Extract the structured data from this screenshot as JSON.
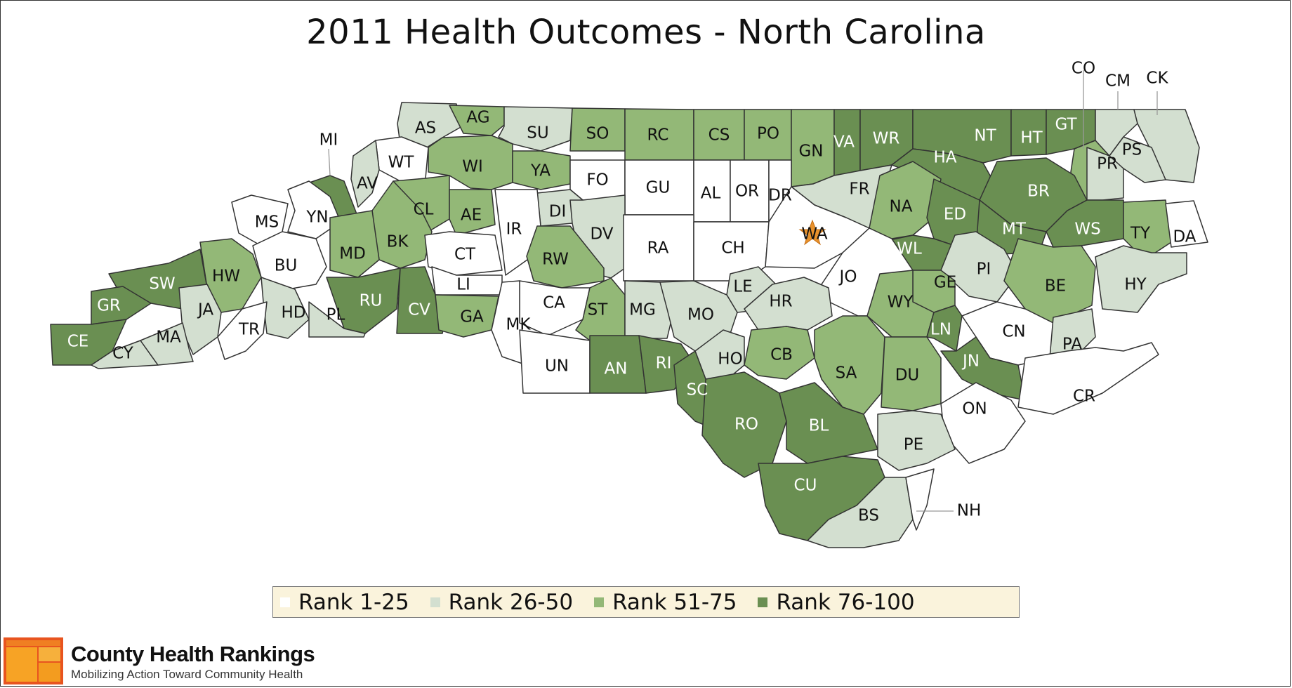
{
  "title": "2011 Health Outcomes - North Carolina",
  "legend": [
    {
      "label": "Rank 1-25",
      "color": "#ffffff"
    },
    {
      "label": "Rank 26-50",
      "color": "#d3dfd0"
    },
    {
      "label": "Rank 51-75",
      "color": "#93b877"
    },
    {
      "label": "Rank 76-100",
      "color": "#6a8f52"
    }
  ],
  "colors": {
    "tier1": "#ffffff",
    "tier2": "#d3dfd0",
    "tier3": "#93b877",
    "tier4": "#6a8f52",
    "border": "#333333",
    "star": "#e8922c"
  },
  "brand": {
    "name": "County Health Rankings",
    "tagline": "Mobilizing Action Toward Community Health"
  },
  "counties": [
    {
      "abbr": "AS",
      "tier": 2
    },
    {
      "abbr": "AG",
      "tier": 3
    },
    {
      "abbr": "SU",
      "tier": 2
    },
    {
      "abbr": "SO",
      "tier": 3
    },
    {
      "abbr": "RC",
      "tier": 3
    },
    {
      "abbr": "CS",
      "tier": 3
    },
    {
      "abbr": "PO",
      "tier": 3
    },
    {
      "abbr": "GN",
      "tier": 3
    },
    {
      "abbr": "VA",
      "tier": 4
    },
    {
      "abbr": "WR",
      "tier": 4
    },
    {
      "abbr": "NT",
      "tier": 4
    },
    {
      "abbr": "HA",
      "tier": 4
    },
    {
      "abbr": "HT",
      "tier": 4
    },
    {
      "abbr": "GT",
      "tier": 4
    },
    {
      "abbr": "CO",
      "tier": 3
    },
    {
      "abbr": "CM",
      "tier": 2
    },
    {
      "abbr": "CK",
      "tier": 2
    },
    {
      "abbr": "PR",
      "tier": 2
    },
    {
      "abbr": "PS",
      "tier": 2
    },
    {
      "abbr": "WT",
      "tier": 1
    },
    {
      "abbr": "WI",
      "tier": 3
    },
    {
      "abbr": "YA",
      "tier": 3
    },
    {
      "abbr": "FO",
      "tier": 1
    },
    {
      "abbr": "GU",
      "tier": 1
    },
    {
      "abbr": "AL",
      "tier": 1
    },
    {
      "abbr": "OR",
      "tier": 1
    },
    {
      "abbr": "DR",
      "tier": 1
    },
    {
      "abbr": "FR",
      "tier": 2
    },
    {
      "abbr": "MI",
      "tier": 4
    },
    {
      "abbr": "AV",
      "tier": 2
    },
    {
      "abbr": "CL",
      "tier": 3
    },
    {
      "abbr": "AE",
      "tier": 3
    },
    {
      "abbr": "DI",
      "tier": 2
    },
    {
      "abbr": "DV",
      "tier": 2
    },
    {
      "abbr": "IR",
      "tier": 1
    },
    {
      "abbr": "RA",
      "tier": 1
    },
    {
      "abbr": "CH",
      "tier": 1
    },
    {
      "abbr": "WA",
      "tier": 1
    },
    {
      "abbr": "NA",
      "tier": 3
    },
    {
      "abbr": "ED",
      "tier": 4
    },
    {
      "abbr": "BR",
      "tier": 4
    },
    {
      "abbr": "MT",
      "tier": 4
    },
    {
      "abbr": "WS",
      "tier": 4
    },
    {
      "abbr": "TY",
      "tier": 3
    },
    {
      "abbr": "DA",
      "tier": 1
    },
    {
      "abbr": "MS",
      "tier": 1
    },
    {
      "abbr": "YN",
      "tier": 1
    },
    {
      "abbr": "BK",
      "tier": 3
    },
    {
      "abbr": "MD",
      "tier": 3
    },
    {
      "abbr": "CT",
      "tier": 1
    },
    {
      "abbr": "RW",
      "tier": 3
    },
    {
      "abbr": "WL",
      "tier": 4
    },
    {
      "abbr": "JO",
      "tier": 1
    },
    {
      "abbr": "PI",
      "tier": 2
    },
    {
      "abbr": "BE",
      "tier": 3
    },
    {
      "abbr": "HY",
      "tier": 2
    },
    {
      "abbr": "BU",
      "tier": 1
    },
    {
      "abbr": "HW",
      "tier": 3
    },
    {
      "abbr": "SW",
      "tier": 4
    },
    {
      "abbr": "LI",
      "tier": 1
    },
    {
      "abbr": "RU",
      "tier": 4
    },
    {
      "abbr": "CV",
      "tier": 4
    },
    {
      "abbr": "LE",
      "tier": 2
    },
    {
      "abbr": "HR",
      "tier": 2
    },
    {
      "abbr": "GE",
      "tier": 3
    },
    {
      "abbr": "WY",
      "tier": 3
    },
    {
      "abbr": "CA",
      "tier": 1
    },
    {
      "abbr": "ST",
      "tier": 3
    },
    {
      "abbr": "MG",
      "tier": 2
    },
    {
      "abbr": "MO",
      "tier": 2
    },
    {
      "abbr": "GR",
      "tier": 4
    },
    {
      "abbr": "JA",
      "tier": 2
    },
    {
      "abbr": "HD",
      "tier": 2
    },
    {
      "abbr": "PL",
      "tier": 2
    },
    {
      "abbr": "GA",
      "tier": 3
    },
    {
      "abbr": "MK",
      "tier": 1
    },
    {
      "abbr": "LN",
      "tier": 4
    },
    {
      "abbr": "CN",
      "tier": 1
    },
    {
      "abbr": "PA",
      "tier": 2
    },
    {
      "abbr": "CE",
      "tier": 4
    },
    {
      "abbr": "CY",
      "tier": 2
    },
    {
      "abbr": "MA",
      "tier": 2
    },
    {
      "abbr": "TR",
      "tier": 1
    },
    {
      "abbr": "UN",
      "tier": 1
    },
    {
      "abbr": "AN",
      "tier": 4
    },
    {
      "abbr": "RI",
      "tier": 4
    },
    {
      "abbr": "HO",
      "tier": 2
    },
    {
      "abbr": "CB",
      "tier": 3
    },
    {
      "abbr": "SA",
      "tier": 3
    },
    {
      "abbr": "DU",
      "tier": 3
    },
    {
      "abbr": "JN",
      "tier": 4
    },
    {
      "abbr": "SC",
      "tier": 4
    },
    {
      "abbr": "CR",
      "tier": 1
    },
    {
      "abbr": "ON",
      "tier": 1
    },
    {
      "abbr": "RO",
      "tier": 4
    },
    {
      "abbr": "BL",
      "tier": 4
    },
    {
      "abbr": "PE",
      "tier": 2
    },
    {
      "abbr": "CU",
      "tier": 4
    },
    {
      "abbr": "BS",
      "tier": 2
    },
    {
      "abbr": "NH",
      "tier": 1
    }
  ]
}
